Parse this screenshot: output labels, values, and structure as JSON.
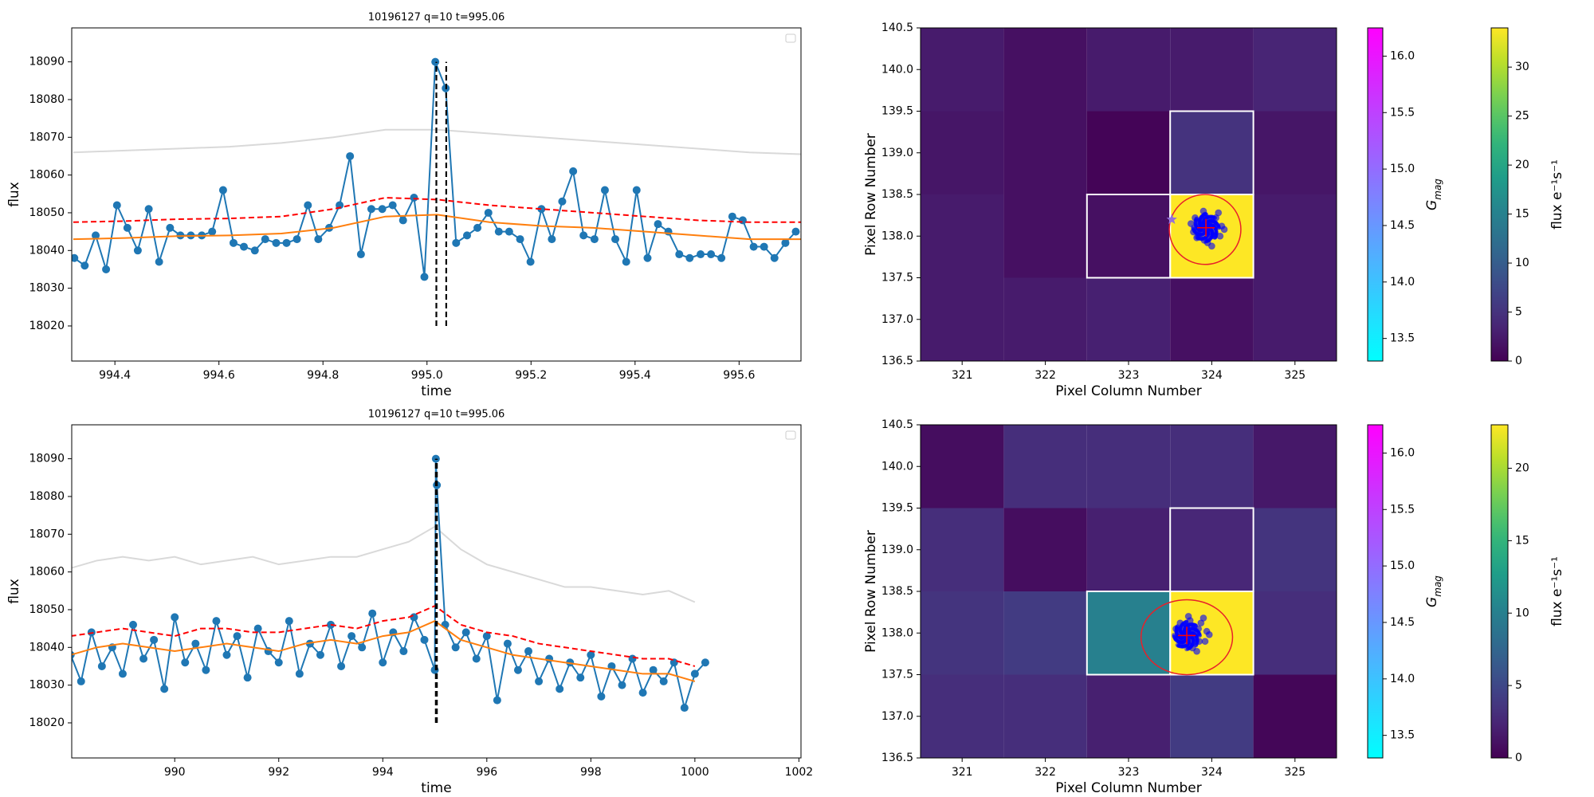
{
  "chart_data": [
    {
      "type": "line",
      "title": "10196127 q=10 t=995.06",
      "x_label": "time",
      "y_label": "flux",
      "xlim": [
        994.317,
        995.719
      ],
      "ylim": [
        18010.7,
        18099
      ],
      "xticks": [
        994.4,
        994.6,
        994.8,
        {
          "value": 995.0,
          "label": "995.0"
        },
        995.2,
        995.4,
        995.6
      ],
      "yticks": [
        18020,
        18030,
        18040,
        18050,
        18060,
        18070,
        18080,
        18090
      ],
      "vlines": [
        995.018,
        995.037
      ],
      "vline_range": [
        18020,
        18090
      ],
      "series": [
        {
          "color": "#d9d9d9",
          "dashed": false,
          "markers": false,
          "x": [
            994.32,
            994.42,
            994.52,
            994.62,
            994.72,
            994.82,
            994.92,
            995.02,
            995.12,
            995.22,
            995.32,
            995.42,
            995.52,
            995.62,
            995.72
          ],
          "values": [
            18066,
            18066.5,
            18067,
            18067.5,
            18068.5,
            18070,
            18072,
            18072,
            18071,
            18070,
            18069,
            18068,
            18067,
            18066,
            18065.5
          ]
        },
        {
          "color": "#1f77b4",
          "dashed": false,
          "markers": true,
          "x": [
            994.322,
            994.342,
            994.363,
            994.383,
            994.404,
            994.424,
            994.444,
            994.465,
            994.485,
            994.506,
            994.526,
            994.546,
            994.567,
            994.587,
            994.608,
            994.628,
            994.648,
            994.669,
            994.689,
            994.71,
            994.73,
            994.75,
            994.771,
            994.791,
            994.812,
            994.832,
            994.852,
            994.873,
            994.893,
            994.914,
            994.934,
            994.954,
            994.975,
            994.995,
            995.016,
            995.036,
            995.056,
            995.077,
            995.097,
            995.118,
            995.138,
            995.158,
            995.179,
            995.199,
            995.22,
            995.24,
            995.26,
            995.281,
            995.301,
            995.322,
            995.342,
            995.362,
            995.383,
            995.403,
            995.424,
            995.444,
            995.464,
            995.485,
            995.505,
            995.526,
            995.546,
            995.566,
            995.587,
            995.607,
            995.628,
            995.648,
            995.668,
            995.689,
            995.709
          ],
          "values": [
            18038,
            18036,
            18044,
            18035,
            18052,
            18046,
            18040,
            18051,
            18037,
            18046,
            18044,
            18044,
            18044,
            18045,
            18056,
            18042,
            18041,
            18040,
            18043,
            18042,
            18042,
            18043,
            18052,
            18043,
            18046,
            18052,
            18065,
            18039,
            18051,
            18051,
            18052,
            18048,
            18054,
            18033,
            18090,
            18083,
            18042,
            18044,
            18046,
            18050,
            18045,
            18045,
            18043,
            18037,
            18051,
            18043,
            18053,
            18061,
            18044,
            18043,
            18056,
            18043,
            18037,
            18056,
            18038,
            18047,
            18045,
            18039,
            18038,
            18039,
            18039,
            18038,
            18049,
            18048,
            18041,
            18041,
            18038,
            18042,
            18045
          ]
        },
        {
          "color": "#ff7f0e",
          "dashed": false,
          "markers": false,
          "x": [
            994.32,
            994.42,
            994.52,
            994.62,
            994.72,
            994.82,
            994.92,
            995.02,
            995.12,
            995.22,
            995.32,
            995.42,
            995.52,
            995.62,
            995.72
          ],
          "values": [
            18043,
            18043.3,
            18043.8,
            18044,
            18044.5,
            18046,
            18049,
            18049.5,
            18047.5,
            18046.5,
            18046,
            18045,
            18044,
            18043,
            18043
          ]
        },
        {
          "color": "#ff0000",
          "dashed": true,
          "markers": false,
          "x": [
            994.32,
            994.42,
            994.52,
            994.62,
            994.72,
            994.82,
            994.92,
            995.02,
            995.12,
            995.22,
            995.32,
            995.42,
            995.52,
            995.62,
            995.72
          ],
          "values": [
            18047.5,
            18047.8,
            18048.3,
            18048.5,
            18049,
            18051,
            18054,
            18053.5,
            18052,
            18051,
            18050,
            18049,
            18048,
            18047.5,
            18047.5
          ]
        }
      ]
    },
    {
      "type": "heatmap",
      "x_label": "Pixel Column Number",
      "y_label": "Pixel Row Number",
      "xlim": [
        320.5,
        325.5
      ],
      "ylim": [
        136.5,
        140.5
      ],
      "xticks": [
        321,
        322,
        323,
        324,
        325
      ],
      "yticks": [
        136.5,
        {
          "value": 137,
          "label": "137.0"
        },
        137.5,
        {
          "value": 138,
          "label": "138.0"
        },
        138.5,
        {
          "value": 139,
          "label": "139.0"
        },
        139.5,
        {
          "value": 140,
          "label": "140.0"
        },
        140.5
      ],
      "columns": [
        321,
        322,
        323,
        324,
        325
      ],
      "rows": [
        140,
        139,
        138,
        137
      ],
      "z": [
        [
          2.5,
          1.5,
          2.5,
          2.5,
          3.5
        ],
        [
          2,
          1.5,
          0.3,
          5,
          2
        ],
        [
          2.5,
          1.5,
          1.5,
          34,
          2.5
        ],
        [
          2.5,
          2.5,
          3,
          1.5,
          2.5
        ]
      ],
      "aperture_cells": {
        "columns": [
          323,
          324,
          324
        ],
        "rows": [
          138,
          138,
          139
        ]
      },
      "centroids": {
        "color": "#0000ff",
        "x": [
          323.85,
          324.02,
          323.92,
          323.78,
          324.1,
          323.95,
          323.88,
          324.05,
          323.82,
          323.98,
          324.12,
          323.9,
          323.75,
          324.0,
          323.86,
          324.08,
          323.94,
          323.8,
          324.03,
          323.91,
          323.97,
          323.84,
          324.15,
          323.89
        ],
        "y": [
          138.1,
          138.15,
          138.25,
          138.05,
          138.0,
          137.92,
          138.18,
          138.22,
          137.98,
          138.05,
          138.12,
          138.3,
          138.15,
          137.88,
          138.08,
          138.28,
          138.12,
          138.22,
          138.0,
          137.95,
          138.18,
          138.02,
          138.08,
          138.14
        ]
      },
      "ellipse": {
        "x": 323.92,
        "y": 138.08,
        "rx": 0.43,
        "ry": 0.42,
        "color": "#e8202a"
      },
      "target": {
        "x": 323.93,
        "y": 138.1,
        "color": "#ff0000"
      },
      "star": {
        "x": 323.52,
        "y": 138.2,
        "color": "#9370db"
      },
      "gmag_colorbar": {
        "label": {
          "main": "G",
          "sub": "mag"
        },
        "colormap": "cool",
        "clim": [
          13.3,
          16.25
        ],
        "ticks": [
          13.5,
          {
            "value": 14,
            "label": "14.0"
          },
          14.5,
          {
            "value": 15,
            "label": "15.0"
          },
          15.5,
          {
            "value": 16,
            "label": "16.0"
          }
        ]
      },
      "flux_colorbar": {
        "label": "flux e⁻¹s⁻¹",
        "colormap": "viridis",
        "clim": [
          0,
          34
        ],
        "ticks": [
          0,
          5,
          10,
          15,
          20,
          25,
          30
        ]
      }
    },
    {
      "type": "line",
      "title": "10196127 q=10 t=995.06",
      "x_label": "time",
      "y_label": "flux",
      "xlim": [
        988.02,
        1002.04
      ],
      "ylim": [
        18010.7,
        18099
      ],
      "xticks": [
        990,
        992,
        994,
        996,
        998,
        1000,
        1002
      ],
      "yticks": [
        18020,
        18030,
        18040,
        18050,
        18060,
        18070,
        18080,
        18090
      ],
      "vlines": [
        995.02,
        995.04
      ],
      "vline_range": [
        18020,
        18090
      ],
      "series": [
        {
          "color": "#d9d9d9",
          "dashed": false,
          "markers": false,
          "x": [
            988,
            988.5,
            989,
            989.5,
            990,
            990.5,
            991,
            991.5,
            992,
            992.5,
            993,
            993.5,
            994,
            994.5,
            995,
            995.5,
            996,
            996.5,
            997,
            997.5,
            998,
            998.5,
            999,
            999.5,
            1000
          ],
          "values": [
            18061,
            18063,
            18064,
            18063,
            18064,
            18062,
            18063,
            18064,
            18062,
            18063,
            18064,
            18064,
            18066,
            18068,
            18072,
            18066,
            18062,
            18060,
            18058,
            18056,
            18056,
            18055,
            18054,
            18055,
            18052
          ]
        },
        {
          "color": "#1f77b4",
          "dashed": false,
          "markers": true,
          "x": [
            988.0,
            988.2,
            988.4,
            988.6,
            988.8,
            989.0,
            989.2,
            989.4,
            989.6,
            989.8,
            990.0,
            990.2,
            990.4,
            990.6,
            990.8,
            991.0,
            991.2,
            991.4,
            991.6,
            991.8,
            992.0,
            992.2,
            992.4,
            992.6,
            992.8,
            993.0,
            993.2,
            993.4,
            993.6,
            993.8,
            994.0,
            994.2,
            994.4,
            994.6,
            994.8,
            995.0,
            995.02,
            995.04,
            995.2,
            995.4,
            995.6,
            995.8,
            996.0,
            996.2,
            996.4,
            996.6,
            996.8,
            997.0,
            997.2,
            997.4,
            997.6,
            997.8,
            998.0,
            998.2,
            998.4,
            998.6,
            998.8,
            999.0,
            999.2,
            999.4,
            999.6,
            999.8,
            1000.0,
            1000.2
          ],
          "values": [
            18038,
            18031,
            18044,
            18035,
            18040,
            18033,
            18046,
            18037,
            18042,
            18029,
            18048,
            18036,
            18041,
            18034,
            18047,
            18038,
            18043,
            18032,
            18045,
            18039,
            18036,
            18047,
            18033,
            18041,
            18038,
            18046,
            18035,
            18043,
            18040,
            18049,
            18036,
            18044,
            18039,
            18048,
            18042,
            18034,
            18090,
            18083,
            18046,
            18040,
            18044,
            18037,
            18043,
            18026,
            18041,
            18034,
            18039,
            18031,
            18037,
            18029,
            18036,
            18032,
            18038,
            18027,
            18035,
            18030,
            18037,
            18028,
            18034,
            18031,
            18036,
            18024,
            18033,
            18036
          ]
        },
        {
          "color": "#ff7f0e",
          "dashed": false,
          "markers": false,
          "x": [
            988,
            988.5,
            989,
            989.5,
            990,
            990.5,
            991,
            991.5,
            992,
            992.5,
            993,
            993.5,
            994,
            994.5,
            995,
            995.5,
            996,
            996.5,
            997,
            997.5,
            998,
            998.5,
            999,
            999.5,
            1000
          ],
          "values": [
            18038,
            18040,
            18041,
            18040,
            18039,
            18040,
            18041,
            18040,
            18039,
            18041,
            18042,
            18041,
            18043,
            18044,
            18047,
            18042,
            18040,
            18038,
            18037,
            18036,
            18035,
            18034,
            18033,
            18033,
            18031
          ]
        },
        {
          "color": "#ff0000",
          "dashed": true,
          "markers": false,
          "x": [
            988,
            988.5,
            989,
            989.5,
            990,
            990.5,
            991,
            991.5,
            992,
            992.5,
            993,
            993.5,
            994,
            994.5,
            995,
            995.5,
            996,
            996.5,
            997,
            997.5,
            998,
            998.5,
            999,
            999.5,
            1000
          ],
          "values": [
            18043,
            18044,
            18045,
            18044,
            18043,
            18045,
            18045,
            18044,
            18044,
            18045,
            18046,
            18045,
            18047,
            18048,
            18051,
            18046,
            18044,
            18043,
            18041,
            18040,
            18039,
            18038,
            18037,
            18037,
            18035
          ]
        }
      ]
    },
    {
      "type": "heatmap",
      "x_label": "Pixel Column Number",
      "y_label": "Pixel Row Number",
      "xlim": [
        320.5,
        325.5
      ],
      "ylim": [
        136.5,
        140.5
      ],
      "xticks": [
        321,
        322,
        323,
        324,
        325
      ],
      "yticks": [
        136.5,
        {
          "value": 137,
          "label": "137.0"
        },
        137.5,
        {
          "value": 138,
          "label": "138.0"
        },
        138.5,
        {
          "value": 139,
          "label": "139.0"
        },
        139.5,
        {
          "value": 140,
          "label": "140.0"
        },
        140.5
      ],
      "columns": [
        321,
        322,
        323,
        324,
        325
      ],
      "rows": [
        140,
        139,
        138,
        137
      ],
      "z": [
        [
          0.8,
          3,
          3,
          3,
          1.5
        ],
        [
          3,
          0.8,
          2,
          2.5,
          3.5
        ],
        [
          3.5,
          4,
          10,
          23,
          3
        ],
        [
          3,
          3,
          2,
          4,
          0.3
        ]
      ],
      "aperture_cells": {
        "columns": [
          323,
          324,
          324
        ],
        "rows": [
          138,
          138,
          139
        ]
      },
      "centroids": {
        "color": "#0000ff",
        "x": [
          323.67,
          323.84,
          323.74,
          323.6,
          323.92,
          323.77,
          323.7,
          323.87,
          323.64,
          323.8,
          323.94,
          323.72,
          323.57,
          323.82,
          323.68,
          323.9,
          323.76,
          323.62,
          323.85,
          323.73,
          323.79,
          323.66,
          323.97,
          323.71
        ],
        "y": [
          138.0,
          138.05,
          138.15,
          137.95,
          137.9,
          137.82,
          138.08,
          138.12,
          137.88,
          137.95,
          138.02,
          138.2,
          138.05,
          137.78,
          137.98,
          138.18,
          138.02,
          138.12,
          137.9,
          137.85,
          138.08,
          137.92,
          137.98,
          138.04
        ]
      },
      "ellipse": {
        "x": 323.7,
        "y": 137.95,
        "rx": 0.55,
        "ry": 0.45,
        "color": "#e8202a"
      },
      "target": {
        "x": 323.7,
        "y": 137.97,
        "color": "#ff0000"
      },
      "gmag_colorbar": {
        "label": {
          "main": "G",
          "sub": "mag"
        },
        "colormap": "cool",
        "clim": [
          13.3,
          16.25
        ],
        "ticks": [
          13.5,
          {
            "value": 14,
            "label": "14.0"
          },
          14.5,
          {
            "value": 15,
            "label": "15.0"
          },
          15.5,
          {
            "value": 16,
            "label": "16.0"
          }
        ]
      },
      "flux_colorbar": {
        "label": "flux e⁻¹s⁻¹",
        "colormap": "viridis",
        "clim": [
          0,
          23
        ],
        "ticks": [
          0,
          5,
          10,
          15,
          20
        ]
      }
    }
  ]
}
